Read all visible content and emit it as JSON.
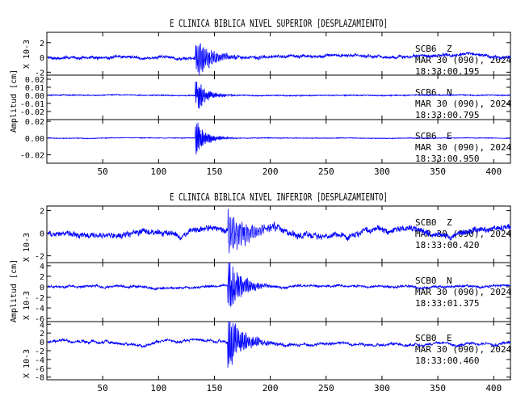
{
  "colors": {
    "trace": "#0000ff",
    "axis": "#000000",
    "background": "#ffffff"
  },
  "chart_data": [
    {
      "type": "line",
      "title": "E CLINICA BIBLICA NIVEL SUPERIOR [DESPLAZAMIENTO]",
      "ylabel": "Amplitud [cm]",
      "xlim": [
        0,
        415
      ],
      "x_ticks": [
        "50",
        "100",
        "150",
        "200",
        "250",
        "300",
        "350",
        "400"
      ],
      "x_tick_values": [
        50,
        100,
        150,
        200,
        250,
        300,
        350,
        400
      ],
      "panels": [
        {
          "station": "SCB6",
          "component": "Z",
          "date": "MAR 30 (090), 2024",
          "time": "18:33:00.195",
          "scale_label": "X 10-3",
          "ylim": [
            -2.4,
            3.4
          ],
          "y_ticks": [
            "2",
            "0",
            "-2"
          ],
          "y_tick_values": [
            2,
            0,
            -2
          ],
          "waveform": {
            "onset": 133,
            "peak": 2.9,
            "noise": 0.35,
            "decay": 14,
            "dominant_period": 1.4,
            "long_period_noise": 0.25,
            "end_offset": 0.1
          }
        },
        {
          "station": "SCB6",
          "component": "N",
          "date": "MAR 30 (090), 2024",
          "time": "18:33:00.795",
          "scale_label": "",
          "ylim": [
            -0.03,
            0.025
          ],
          "y_ticks": [
            "0.02",
            "0.01",
            "0.00",
            "-0.01",
            "-0.02"
          ],
          "y_tick_values": [
            0.02,
            0.01,
            0,
            -0.01,
            -0.02
          ],
          "waveform": {
            "onset": 133,
            "peak": 0.026,
            "noise": 0.0012,
            "decay": 9,
            "dominant_period": 1.0,
            "long_period_noise": 0.0005,
            "end_offset": 0.0
          }
        },
        {
          "station": "SCB6",
          "component": "E",
          "date": "MAR 30 (090), 2024",
          "time": "18:33:00.950",
          "scale_label": "",
          "ylim": [
            -0.03,
            0.022
          ],
          "y_ticks": [
            "0.02",
            "0.00",
            "-0.02"
          ],
          "y_tick_values": [
            0.02,
            0,
            -0.02
          ],
          "waveform": {
            "onset": 133,
            "peak": 0.024,
            "noise": 0.0008,
            "decay": 9,
            "dominant_period": 1.0,
            "long_period_noise": 0.0003,
            "end_offset": 0.0
          }
        }
      ]
    },
    {
      "type": "line",
      "title": "E CLINICA BIBLICA NIVEL INFERIOR [DESPLAZAMIENTO]",
      "ylabel": "Amplitud [cm]",
      "xlim": [
        0,
        415
      ],
      "x_ticks": [
        "50",
        "100",
        "150",
        "200",
        "250",
        "300",
        "350",
        "400"
      ],
      "x_tick_values": [
        50,
        100,
        150,
        200,
        250,
        300,
        350,
        400
      ],
      "panels": [
        {
          "station": "SCB0",
          "component": "Z",
          "date": "MAR 30 (090), 2024",
          "time": "18:33:00.420",
          "scale_label": "X 10-3",
          "ylim": [
            -2.6,
            2.4
          ],
          "y_ticks": [
            "2",
            "0",
            "-2"
          ],
          "y_tick_values": [
            2,
            0,
            -2
          ],
          "waveform": {
            "onset": 162,
            "peak": 2.2,
            "noise": 0.45,
            "decay": 18,
            "dominant_period": 1.8,
            "long_period_noise": 0.35,
            "end_offset": 0.2
          }
        },
        {
          "station": "SCB0",
          "component": "N",
          "date": "MAR 30 (090), 2024",
          "time": "18:33:01.375",
          "scale_label": "X 10-3",
          "ylim": [
            -6.6,
            4.6
          ],
          "y_ticks": [
            "4",
            "2",
            "0",
            "-2",
            "-4",
            "-6"
          ],
          "y_tick_values": [
            4,
            2,
            0,
            -2,
            -4,
            -6
          ],
          "waveform": {
            "onset": 162,
            "peak": 6.0,
            "noise": 0.35,
            "decay": 12,
            "dominant_period": 1.3,
            "long_period_noise": 0.3,
            "end_offset": 0.1
          }
        },
        {
          "station": "SCB0",
          "component": "E",
          "date": "MAR 30 (090), 2024",
          "time": "18:33:00.460",
          "scale_label": "X 10-3",
          "ylim": [
            -8.6,
            4.6
          ],
          "y_ticks": [
            "4",
            "2",
            "0",
            "-2",
            "-4",
            "-6",
            "-8"
          ],
          "y_tick_values": [
            4,
            2,
            0,
            -2,
            -4,
            -6,
            -8
          ],
          "waveform": {
            "onset": 162,
            "peak": 7.5,
            "noise": 0.45,
            "decay": 13,
            "dominant_period": 1.3,
            "long_period_noise": 0.6,
            "end_offset": -0.3
          }
        }
      ]
    }
  ]
}
